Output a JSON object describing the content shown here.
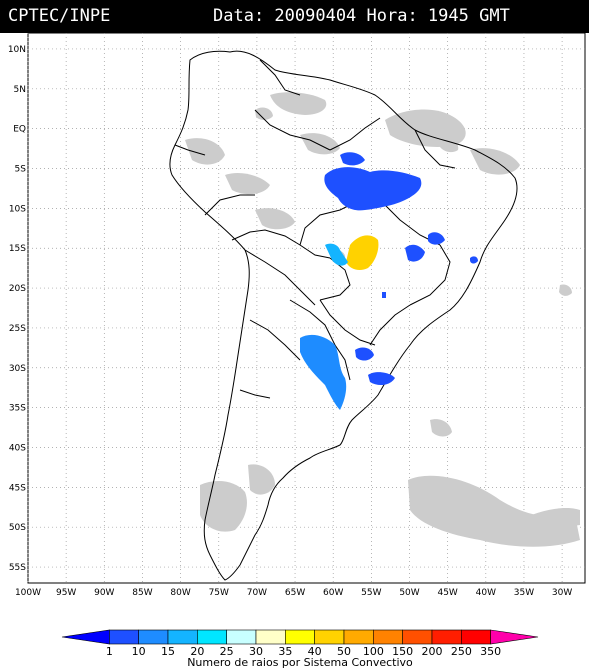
{
  "header": {
    "source": "CPTEC/INPE",
    "datetime": "Data: 20090404 Hora: 1945 GMT"
  },
  "map": {
    "lat_labels": [
      "10N",
      "5N",
      "EQ",
      "5S",
      "10S",
      "15S",
      "20S",
      "25S",
      "30S",
      "35S",
      "40S",
      "45S",
      "50S",
      "55S"
    ],
    "lon_labels": [
      "100W",
      "95W",
      "90W",
      "85W",
      "80W",
      "75W",
      "70W",
      "65W",
      "60W",
      "55W",
      "50W",
      "45W",
      "40W",
      "35W",
      "30W"
    ],
    "lat_range": [
      12,
      -57
    ],
    "lon_range": [
      -100,
      -27
    ],
    "gridlines": true,
    "colors": {
      "cloud_gray": "#c8c8c8",
      "outline": "#000000"
    }
  },
  "legend": {
    "values": [
      "1",
      "10",
      "15",
      "20",
      "25",
      "30",
      "35",
      "40",
      "50",
      "100",
      "150",
      "200",
      "250",
      "350"
    ],
    "colors": [
      "#0000ff",
      "#1e50ff",
      "#1e8cff",
      "#14b4ff",
      "#00e6ff",
      "#c8ffff",
      "#ffffc8",
      "#ffff00",
      "#ffd200",
      "#ffaa00",
      "#ff8200",
      "#ff5000",
      "#ff1e00",
      "#ff0000",
      "#ff00aa"
    ],
    "title": "Numero de raios por Sistema Convectivo"
  }
}
